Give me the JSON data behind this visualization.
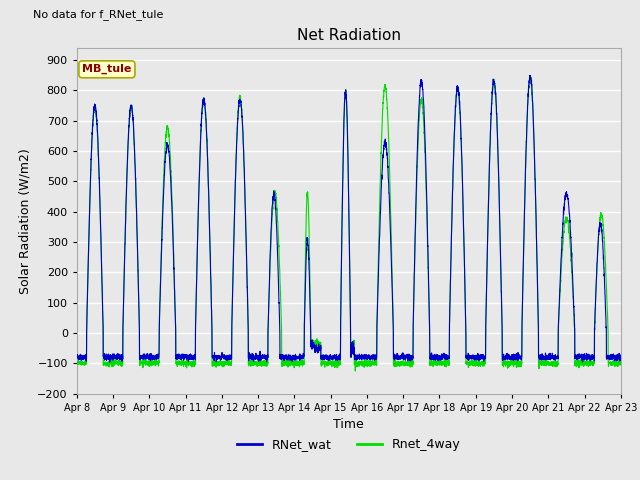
{
  "title": "Net Radiation",
  "xlabel": "Time",
  "ylabel": "Solar Radiation (W/m2)",
  "ylim": [
    -200,
    940
  ],
  "yticks": [
    -200,
    -100,
    0,
    100,
    200,
    300,
    400,
    500,
    600,
    700,
    800,
    900
  ],
  "background_color": "#e8e8e8",
  "plot_bg_color": "#e8e8e8",
  "grid_color": "white",
  "no_data_text": "No data for f_RNet_tule",
  "mb_tule_label": "MB_tule",
  "legend_entries": [
    "RNet_wat",
    "Rnet_4way"
  ],
  "legend_colors": [
    "#0000cc",
    "#00dd00"
  ],
  "line_colors": [
    "#0000cc",
    "#00dd00"
  ],
  "n_days": 15,
  "x_tick_labels": [
    "Apr 8",
    "Apr 9",
    "Apr 10",
    "Apr 11",
    "Apr 12",
    "Apr 13",
    "Apr 14",
    "Apr 15",
    "Apr 16",
    "Apr 17",
    "Apr 18",
    "Apr 19",
    "Apr 20",
    "Apr 21",
    "Apr 22",
    "Apr 23"
  ],
  "peak_values_blue": [
    750,
    750,
    620,
    770,
    770,
    460,
    305,
    800,
    630,
    830,
    810,
    830,
    845,
    460,
    360
  ],
  "peak_values_green": [
    745,
    745,
    680,
    770,
    775,
    465,
    465,
    800,
    815,
    770,
    810,
    830,
    845,
    380,
    390
  ],
  "night_val_blue": -80,
  "night_val_green": -100
}
